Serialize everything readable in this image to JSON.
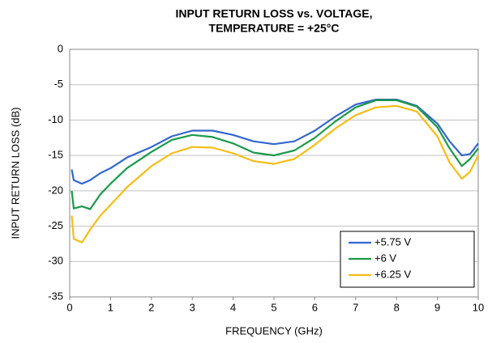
{
  "chart_data": {
    "type": "line",
    "title": [
      "INPUT RETURN LOSS vs. VOLTAGE,",
      "TEMPERATURE = +25°C"
    ],
    "xlabel": "FREQUENCY (GHz)",
    "ylabel": "INPUT RETURN LOSS (dB)",
    "x": [
      0.05,
      0.1,
      0.3,
      0.5,
      0.75,
      1,
      1.4,
      2,
      2.5,
      3,
      3.5,
      4,
      4.5,
      5,
      5.5,
      6,
      6.5,
      7,
      7.5,
      8,
      8.5,
      9,
      9.3,
      9.6,
      9.8,
      10
    ],
    "series": [
      {
        "name": "+5.75 V",
        "color": "#3366cc",
        "values": [
          -17,
          -18.5,
          -19,
          -18.5,
          -17.5,
          -16.8,
          -15.3,
          -13.8,
          -12.3,
          -11.5,
          -11.5,
          -12.1,
          -13,
          -13.4,
          -13,
          -11.5,
          -9.5,
          -7.8,
          -7.1,
          -7.1,
          -8,
          -10.5,
          -13,
          -15,
          -14.8,
          -13.3
        ]
      },
      {
        "name": "+6 V",
        "color": "#1a9a4a",
        "values": [
          -20,
          -22.5,
          -22.2,
          -22.6,
          -20.5,
          -19,
          -16.8,
          -14.5,
          -12.8,
          -12.1,
          -12.4,
          -13.3,
          -14.6,
          -15,
          -14.3,
          -12.5,
          -10.2,
          -8.2,
          -7.2,
          -7.2,
          -8.1,
          -11,
          -14,
          -16.5,
          -15.5,
          -14
        ]
      },
      {
        "name": "+6.25 V",
        "color": "#f5bd17",
        "values": [
          -23.5,
          -26.8,
          -27.3,
          -25.5,
          -23.5,
          -22,
          -19.5,
          -16.5,
          -14.7,
          -13.8,
          -13.9,
          -14.7,
          -15.8,
          -16.2,
          -15.5,
          -13.5,
          -11.2,
          -9.3,
          -8.2,
          -8,
          -8.8,
          -12.3,
          -16,
          -18.3,
          -17.3,
          -15
        ]
      }
    ],
    "xlim": [
      0,
      10
    ],
    "xticks": [
      0,
      1,
      2,
      3,
      4,
      5,
      6,
      7,
      8,
      9,
      10
    ],
    "ylim": [
      -35,
      0
    ],
    "yticks": [
      0,
      -5,
      -10,
      -15,
      -20,
      -25,
      -30,
      -35
    ],
    "grid": true,
    "legend": "lower right"
  }
}
